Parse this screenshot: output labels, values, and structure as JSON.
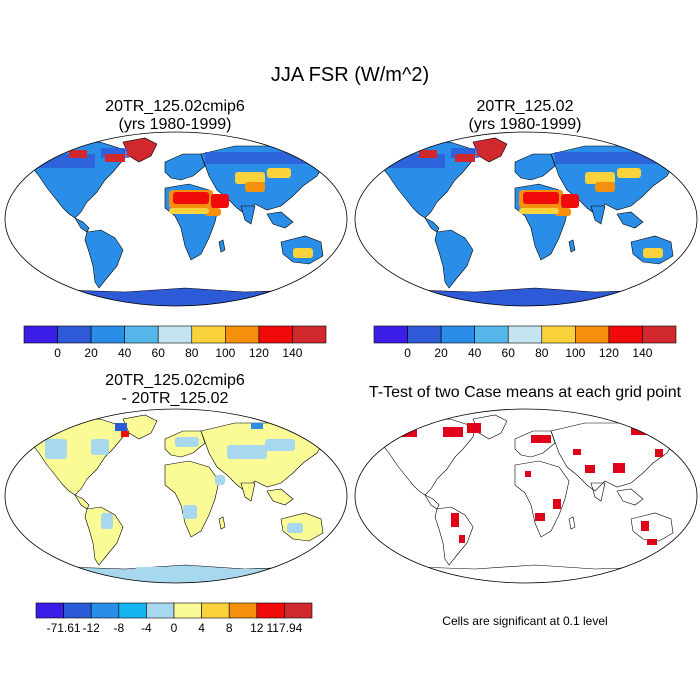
{
  "figure": {
    "title": "JJA FSR (W/m^2)"
  },
  "panels": [
    {
      "id": "case1",
      "title_line1": "20TR_125.02cmip6",
      "title_line2": "(yrs 1980-1999)",
      "type": "absolute"
    },
    {
      "id": "case2",
      "title_line1": "20TR_125.02",
      "title_line2": "(yrs 1980-1999)",
      "type": "absolute"
    },
    {
      "id": "difference",
      "title_line1": "20TR_125.02cmip6",
      "title_line2": "- 20TR_125.02",
      "type": "difference"
    },
    {
      "id": "ttest",
      "title_line1": "T-Test of two Case means at each grid point",
      "title_line2": "",
      "type": "significance",
      "note": "Cells are significant at 0.1 level"
    }
  ],
  "colorbars": {
    "absolute": {
      "colors": [
        "#3a1ee8",
        "#2e5ad8",
        "#2a8ee8",
        "#55b6ec",
        "#c4e4f0",
        "#fad23c",
        "#f5900c",
        "#f00a0a",
        "#d0282d"
      ],
      "labels": [
        "0",
        "20",
        "40",
        "60",
        "80",
        "100",
        "120",
        "140"
      ]
    },
    "difference": {
      "colors": [
        "#3a1ee8",
        "#2a5ad8",
        "#2a8ee8",
        "#14b4f0",
        "#a8d8ee",
        "#fafa96",
        "#fad23c",
        "#f5900c",
        "#f00a0a",
        "#d0282d"
      ],
      "labels": [
        "-71.61",
        "-12",
        "-8",
        "-4",
        "0",
        "4",
        "8",
        "12",
        "117.94"
      ]
    }
  },
  "colors": {
    "ocean": "#ffffff",
    "land_abs_base": "#2a8ee8",
    "land_abs_high": "#2e5ad8",
    "desert_hot": "#f00a0a",
    "desert_warm": "#f5900c",
    "desert_mild": "#fad23c",
    "ice": "#d0282d",
    "antarctica_abs": "#2e5ad8",
    "diff_base": "#fafa96",
    "diff_neg": "#a8d8ee",
    "signif": "#e0001a"
  }
}
